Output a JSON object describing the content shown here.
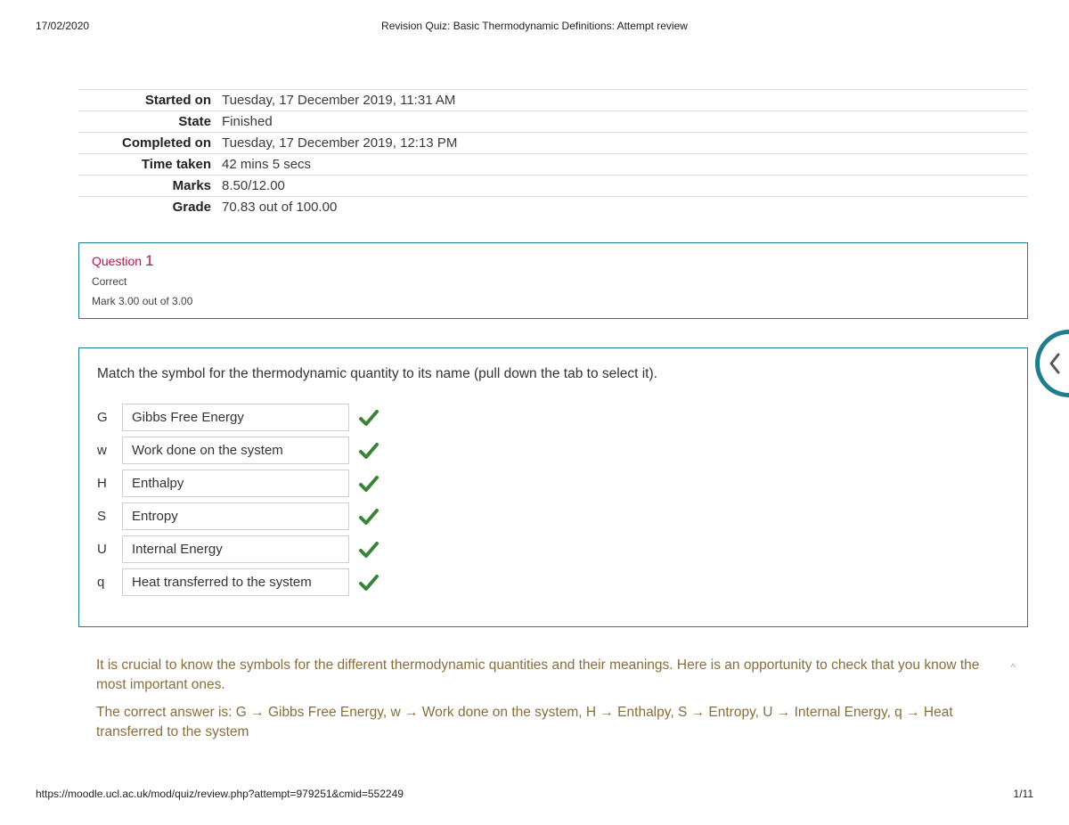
{
  "header": {
    "date": "17/02/2020",
    "title": "Revision Quiz: Basic Thermodynamic Definitions: Attempt review"
  },
  "info": [
    {
      "label": "Started on",
      "value": "Tuesday, 17 December 2019, 11:31 AM"
    },
    {
      "label": "State",
      "value": "Finished"
    },
    {
      "label": "Completed on",
      "value": "Tuesday, 17 December 2019, 12:13 PM"
    },
    {
      "label": "Time taken",
      "value": "42 mins 5 secs"
    },
    {
      "label": "Marks",
      "value": "8.50/12.00"
    },
    {
      "label": "Grade",
      "value": "70.83 out of 100.00"
    }
  ],
  "question": {
    "label": "Question",
    "number": "1",
    "status": "Correct",
    "mark": "Mark 3.00 out of 3.00",
    "instruction": "Match the symbol for the thermodynamic quantity to its name (pull down the tab to select it).",
    "matches": [
      {
        "symbol": "G",
        "answer": "Gibbs Free Energy",
        "correct": true
      },
      {
        "symbol": "w",
        "answer": "Work done on the system",
        "correct": true
      },
      {
        "symbol": "H",
        "answer": "Enthalpy",
        "correct": true
      },
      {
        "symbol": "S",
        "answer": "Entropy",
        "correct": true
      },
      {
        "symbol": "U",
        "answer": "Internal Energy",
        "correct": true
      },
      {
        "symbol": "q",
        "answer": "Heat transferred to the system",
        "correct": true
      }
    ],
    "feedback1": "It is crucial to know the symbols for the different thermodynamic quantities and their meanings. Here is an opportunity to check that you know the most important ones.",
    "feedback2": "The correct answer is: G → Gibbs Free Energy, w → Work done on the system, H → Enthalpy, S → Entropy, U → Internal Energy, q → Heat transferred to the system"
  },
  "footer": {
    "url": "https://moodle.ucl.ac.uk/mod/quiz/review.php?attempt=979251&cmid=552249",
    "page": "1/11"
  },
  "colors": {
    "accent": "#1f7e8c",
    "question_title": "#b9144f",
    "feedback_text": "#8a6d3b",
    "check_green": "#398439",
    "border_gray": "#dcdcdc"
  }
}
